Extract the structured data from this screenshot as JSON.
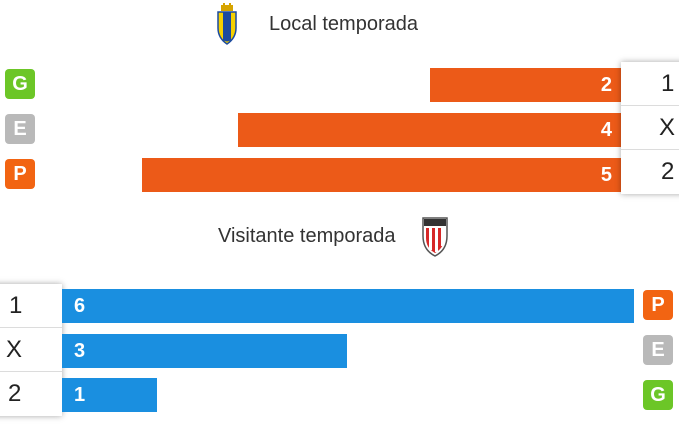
{
  "local": {
    "title": "Local temporada",
    "crest_icon": "cadiz-crest-icon",
    "bar_color": "#ec5a18",
    "rows": [
      {
        "badge": "G",
        "badge_color": "#6cc627",
        "value": "2",
        "outcome": "1"
      },
      {
        "badge": "E",
        "badge_color": "#b9b9b9",
        "value": "4",
        "outcome": "X"
      },
      {
        "badge": "P",
        "badge_color": "#f26412",
        "value": "5",
        "outcome": "2"
      }
    ]
  },
  "away": {
    "title": "Visitante temporada",
    "crest_icon": "athletic-club-crest-icon",
    "bar_color": "#1a8fe0",
    "rows": [
      {
        "outcome": "1",
        "value": "6",
        "badge": "P",
        "badge_color": "#f26412"
      },
      {
        "outcome": "X",
        "value": "3",
        "badge": "E",
        "badge_color": "#b9b9b9"
      },
      {
        "outcome": "2",
        "value": "1",
        "badge": "G",
        "badge_color": "#6cc627"
      }
    ]
  }
}
